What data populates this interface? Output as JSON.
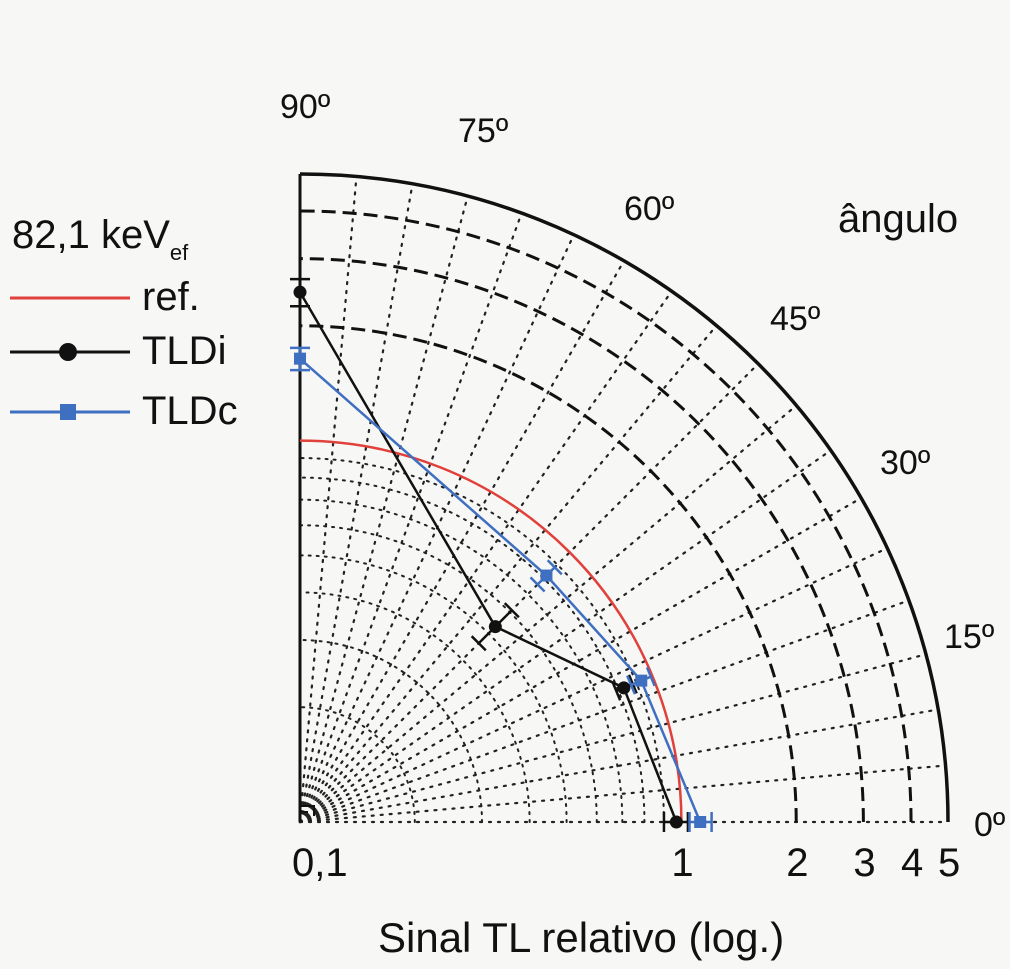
{
  "chart_data": {
    "type": "polar-log",
    "title": "ângulo",
    "xlabel": "Sinal TL relativo (log.)",
    "radial_axis": {
      "scale": "log",
      "range": [
        0.1,
        5
      ],
      "tick_labels": [
        "0,1",
        "1",
        "2",
        "3",
        "4",
        "5"
      ],
      "tick_values": [
        0.1,
        1,
        2,
        3,
        4,
        5
      ]
    },
    "angular_axis": {
      "range_deg": [
        0,
        90
      ],
      "tick_labels": [
        "0º",
        "15º",
        "30º",
        "45º",
        "60º",
        "75º",
        "90º"
      ],
      "tick_values": [
        0,
        15,
        30,
        45,
        60,
        75,
        90
      ]
    },
    "dotted_spokes_every_deg": 5,
    "legend": {
      "placement": "top-left",
      "heading": "82,1 keV",
      "heading_sub": "ef",
      "items": [
        {
          "label": "ref.",
          "color": "#e0413a",
          "marker": "none"
        },
        {
          "label": "TLDi",
          "color": "#111111",
          "marker": "circle"
        },
        {
          "label": "TLDc",
          "color": "#3f6fc0",
          "marker": "square"
        }
      ]
    },
    "series": [
      {
        "name": "ref.",
        "color": "#e0413a",
        "angles": [
          0,
          90
        ],
        "values": [
          1,
          1
        ],
        "shape": "arc"
      },
      {
        "name": "TLDi",
        "color": "#111111",
        "points": [
          {
            "angle": 0,
            "value": 0.97,
            "err": [
              0.9,
              1.04
            ]
          },
          {
            "angle": 22.5,
            "value": 0.83,
            "err": [
              0.79,
              0.88
            ]
          },
          {
            "angle": 45,
            "value": 0.53,
            "err": [
              0.46,
              0.61
            ]
          },
          {
            "angle": 90,
            "value": 2.45,
            "err": [
              2.25,
              2.65
            ]
          }
        ]
      },
      {
        "name": "TLDc",
        "color": "#3f6fc0",
        "points": [
          {
            "angle": 0,
            "value": 1.12,
            "err": [
              1.05,
              1.2
            ]
          },
          {
            "angle": 22.5,
            "value": 0.93,
            "err": [
              0.87,
              0.99
            ]
          },
          {
            "angle": 45,
            "value": 0.82,
            "err": [
              0.76,
              0.88
            ]
          },
          {
            "angle": 90,
            "value": 1.64,
            "err": [
              1.53,
              1.75
            ]
          }
        ]
      }
    ]
  }
}
